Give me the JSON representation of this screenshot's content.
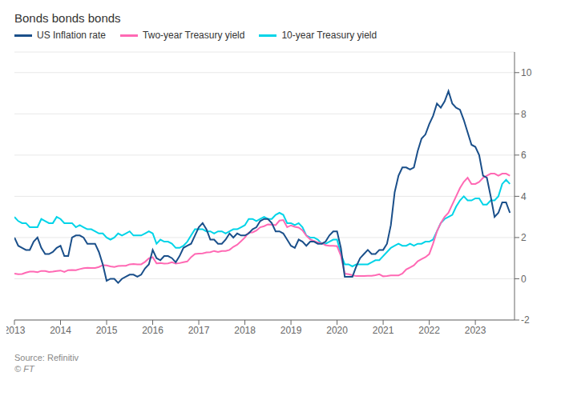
{
  "chart_data": {
    "type": "line",
    "title": "Bonds bonds bonds",
    "annotations": [
      "Source: Refinitiv",
      "© FT"
    ],
    "legend": "upper left",
    "grid": true,
    "xlim": [
      2013.0,
      2023.85
    ],
    "xticks": [
      2013,
      2014,
      2015,
      2016,
      2017,
      2018,
      2019,
      2020,
      2021,
      2022,
      2023
    ],
    "ylim": [
      -2,
      11
    ],
    "yticks": [
      -2,
      0,
      2,
      4,
      6,
      8,
      10
    ],
    "x": [
      2013.0,
      2013.083,
      2013.167,
      2013.25,
      2013.333,
      2013.417,
      2013.5,
      2013.583,
      2013.667,
      2013.75,
      2013.833,
      2013.917,
      2014.0,
      2014.083,
      2014.167,
      2014.25,
      2014.333,
      2014.417,
      2014.5,
      2014.583,
      2014.667,
      2014.75,
      2014.833,
      2014.917,
      2015.0,
      2015.083,
      2015.167,
      2015.25,
      2015.333,
      2015.417,
      2015.5,
      2015.583,
      2015.667,
      2015.75,
      2015.833,
      2015.917,
      2016.0,
      2016.083,
      2016.167,
      2016.25,
      2016.333,
      2016.417,
      2016.5,
      2016.583,
      2016.667,
      2016.75,
      2016.833,
      2016.917,
      2017.0,
      2017.083,
      2017.167,
      2017.25,
      2017.333,
      2017.417,
      2017.5,
      2017.583,
      2017.667,
      2017.75,
      2017.833,
      2017.917,
      2018.0,
      2018.083,
      2018.167,
      2018.25,
      2018.333,
      2018.417,
      2018.5,
      2018.583,
      2018.667,
      2018.75,
      2018.833,
      2018.917,
      2019.0,
      2019.083,
      2019.167,
      2019.25,
      2019.333,
      2019.417,
      2019.5,
      2019.583,
      2019.667,
      2019.75,
      2019.833,
      2019.917,
      2020.0,
      2020.083,
      2020.167,
      2020.25,
      2020.333,
      2020.417,
      2020.5,
      2020.583,
      2020.667,
      2020.75,
      2020.833,
      2020.917,
      2021.0,
      2021.083,
      2021.167,
      2021.25,
      2021.333,
      2021.417,
      2021.5,
      2021.583,
      2021.667,
      2021.75,
      2021.833,
      2021.917,
      2022.0,
      2022.083,
      2022.167,
      2022.25,
      2022.333,
      2022.417,
      2022.5,
      2022.583,
      2022.667,
      2022.75,
      2022.833,
      2022.917,
      2023.0,
      2023.083,
      2023.167,
      2023.25,
      2023.333,
      2023.417,
      2023.5,
      2023.583,
      2023.667,
      2023.75
    ],
    "series": [
      {
        "name": "US Inflation rate",
        "color": "#1a4f8a",
        "values": [
          2.0,
          1.6,
          1.5,
          1.4,
          1.4,
          1.8,
          2.0,
          1.5,
          1.2,
          1.2,
          1.3,
          1.5,
          1.6,
          1.1,
          1.1,
          2.0,
          2.1,
          2.1,
          2.0,
          1.7,
          1.7,
          1.7,
          1.3,
          0.7,
          -0.1,
          0.0,
          0.0,
          -0.2,
          0.0,
          0.1,
          0.2,
          0.2,
          0.1,
          0.2,
          0.5,
          0.7,
          1.4,
          1.0,
          0.9,
          1.1,
          1.1,
          1.0,
          0.8,
          1.1,
          1.5,
          1.6,
          1.7,
          2.1,
          2.5,
          2.7,
          2.4,
          1.9,
          1.9,
          1.7,
          1.7,
          1.9,
          2.2,
          2.0,
          2.2,
          2.1,
          2.1,
          2.2,
          2.4,
          2.5,
          2.8,
          2.9,
          2.9,
          2.7,
          2.3,
          2.3,
          2.2,
          1.9,
          1.6,
          1.5,
          1.9,
          1.8,
          1.6,
          1.8,
          1.8,
          1.7,
          1.7,
          1.8,
          2.1,
          2.3,
          2.3,
          1.5,
          0.1,
          0.1,
          0.1,
          0.6,
          1.0,
          1.2,
          1.4,
          1.2,
          1.2,
          1.4,
          1.4,
          1.7,
          2.6,
          4.2,
          5.0,
          5.4,
          5.4,
          5.3,
          5.4,
          6.2,
          6.8,
          7.0,
          7.5,
          7.9,
          8.5,
          8.3,
          8.6,
          9.1,
          8.5,
          8.3,
          8.2,
          7.7,
          7.1,
          6.5,
          6.4,
          6.0,
          5.0,
          4.9,
          4.0,
          3.0,
          3.2,
          3.7,
          3.7,
          3.2
        ]
      },
      {
        "name": "Two-year Treasury yield",
        "color": "#ff69b4",
        "values": [
          0.25,
          0.22,
          0.23,
          0.3,
          0.35,
          0.35,
          0.32,
          0.38,
          0.38,
          0.33,
          0.35,
          0.38,
          0.4,
          0.33,
          0.42,
          0.43,
          0.42,
          0.47,
          0.51,
          0.53,
          0.52,
          0.52,
          0.57,
          0.66,
          0.65,
          0.6,
          0.57,
          0.62,
          0.63,
          0.63,
          0.7,
          0.72,
          0.7,
          0.7,
          0.82,
          0.99,
          1.05,
          0.75,
          0.76,
          0.74,
          0.75,
          0.8,
          0.74,
          0.76,
          0.8,
          0.84,
          1.05,
          1.2,
          1.22,
          1.23,
          1.28,
          1.29,
          1.35,
          1.3,
          1.35,
          1.35,
          1.4,
          1.55,
          1.65,
          1.82,
          2.0,
          2.24,
          2.25,
          2.34,
          2.5,
          2.55,
          2.64,
          2.63,
          2.6,
          2.82,
          2.85,
          2.5,
          2.59,
          2.52,
          2.48,
          2.35,
          2.09,
          1.91,
          1.83,
          1.76,
          1.73,
          1.63,
          1.6,
          1.6,
          1.58,
          1.12,
          0.25,
          0.22,
          0.17,
          0.13,
          0.13,
          0.13,
          0.14,
          0.14,
          0.17,
          0.22,
          0.12,
          0.13,
          0.16,
          0.16,
          0.16,
          0.25,
          0.45,
          0.55,
          0.65,
          0.85,
          0.95,
          1.05,
          1.2,
          1.7,
          2.3,
          2.7,
          3.0,
          3.2,
          3.6,
          4.0,
          4.4,
          4.7,
          4.9,
          4.6,
          4.6,
          4.7,
          4.9,
          5.0,
          5.1,
          5.1,
          5.0,
          5.1,
          5.1,
          5.0
        ]
      },
      {
        "name": "10-year Treasury yield",
        "color": "#00d4e8",
        "values": [
          3.0,
          2.8,
          2.7,
          2.7,
          2.5,
          2.5,
          2.5,
          2.9,
          2.8,
          2.7,
          2.7,
          3.0,
          2.9,
          2.7,
          2.7,
          2.7,
          2.5,
          2.6,
          2.5,
          2.4,
          2.4,
          2.3,
          2.2,
          2.2,
          2.0,
          1.9,
          2.0,
          2.2,
          2.1,
          2.2,
          2.3,
          2.1,
          2.1,
          2.1,
          2.2,
          2.3,
          2.2,
          1.7,
          1.9,
          1.8,
          1.8,
          1.7,
          1.5,
          1.5,
          1.6,
          1.8,
          2.1,
          2.4,
          2.4,
          2.4,
          2.3,
          2.3,
          2.2,
          2.3,
          2.3,
          2.2,
          2.3,
          2.4,
          2.4,
          2.5,
          2.6,
          2.9,
          2.9,
          2.8,
          2.9,
          3.0,
          2.9,
          2.9,
          3.1,
          3.2,
          3.1,
          2.7,
          2.7,
          2.6,
          2.7,
          2.5,
          2.1,
          2.0,
          2.0,
          1.9,
          1.7,
          1.7,
          1.8,
          1.9,
          1.9,
          1.2,
          0.7,
          0.7,
          0.6,
          0.7,
          0.7,
          0.7,
          0.7,
          0.8,
          0.9,
          0.9,
          1.1,
          1.3,
          1.5,
          1.6,
          1.7,
          1.6,
          1.6,
          1.7,
          1.6,
          1.7,
          1.7,
          1.8,
          1.8,
          1.9,
          2.3,
          2.7,
          2.9,
          3.0,
          3.1,
          3.5,
          3.8,
          4.0,
          3.8,
          3.8,
          3.9,
          3.9,
          3.6,
          3.6,
          3.8,
          3.8,
          4.0,
          4.6,
          4.8,
          4.6
        ]
      }
    ]
  }
}
